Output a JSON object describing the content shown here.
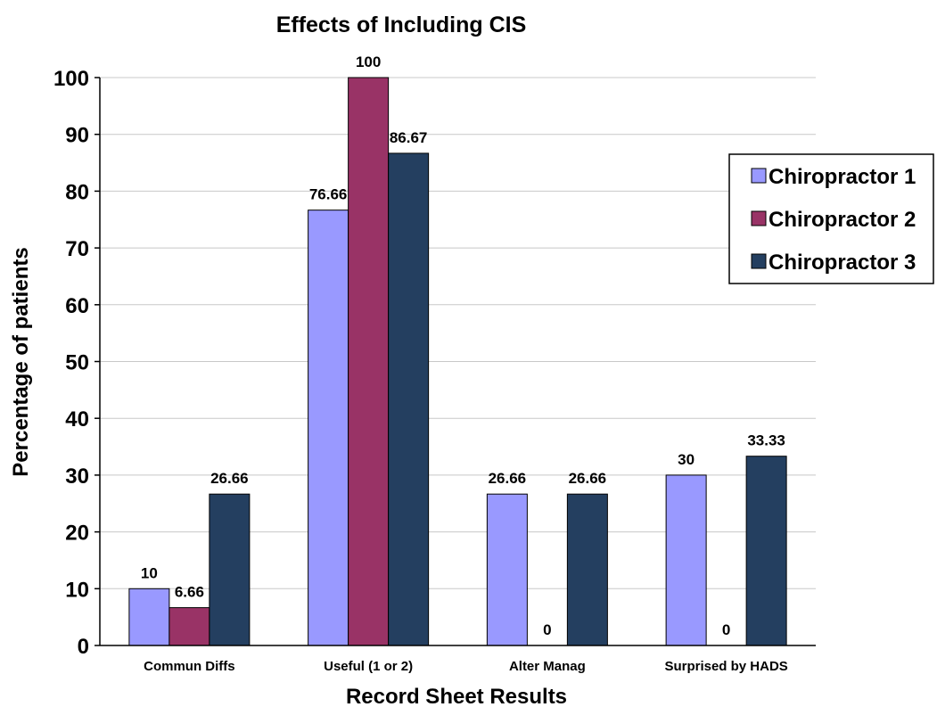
{
  "chart_data": {
    "type": "bar",
    "title": "Effects of Including CIS",
    "xlabel": "Record Sheet Results",
    "ylabel": "Percentage of patients",
    "categories": [
      "Commun Diffs",
      "Useful (1 or 2)",
      "Alter Manag",
      "Surprised by HADS"
    ],
    "series": [
      {
        "name": "Chiropractor 1",
        "color": "#9999ff",
        "values": [
          10,
          76.66,
          26.66,
          30
        ],
        "labels": [
          "10",
          "76.66",
          "26.66",
          "30"
        ]
      },
      {
        "name": "Chiropractor 2",
        "color": "#993366",
        "values": [
          6.66,
          100,
          0,
          0
        ],
        "labels": [
          "6.66",
          "100",
          "0",
          "0"
        ]
      },
      {
        "name": "Chiropractor 3",
        "color": "#243f60",
        "values": [
          26.66,
          86.67,
          26.66,
          33.33
        ],
        "labels": [
          "26.66",
          "86.67",
          "26.66",
          "33.33"
        ]
      }
    ],
    "ylim": [
      0,
      100
    ],
    "yticks": [
      0,
      10,
      20,
      30,
      40,
      50,
      60,
      70,
      80,
      90,
      100
    ],
    "grid": true,
    "legend_position": "right"
  }
}
